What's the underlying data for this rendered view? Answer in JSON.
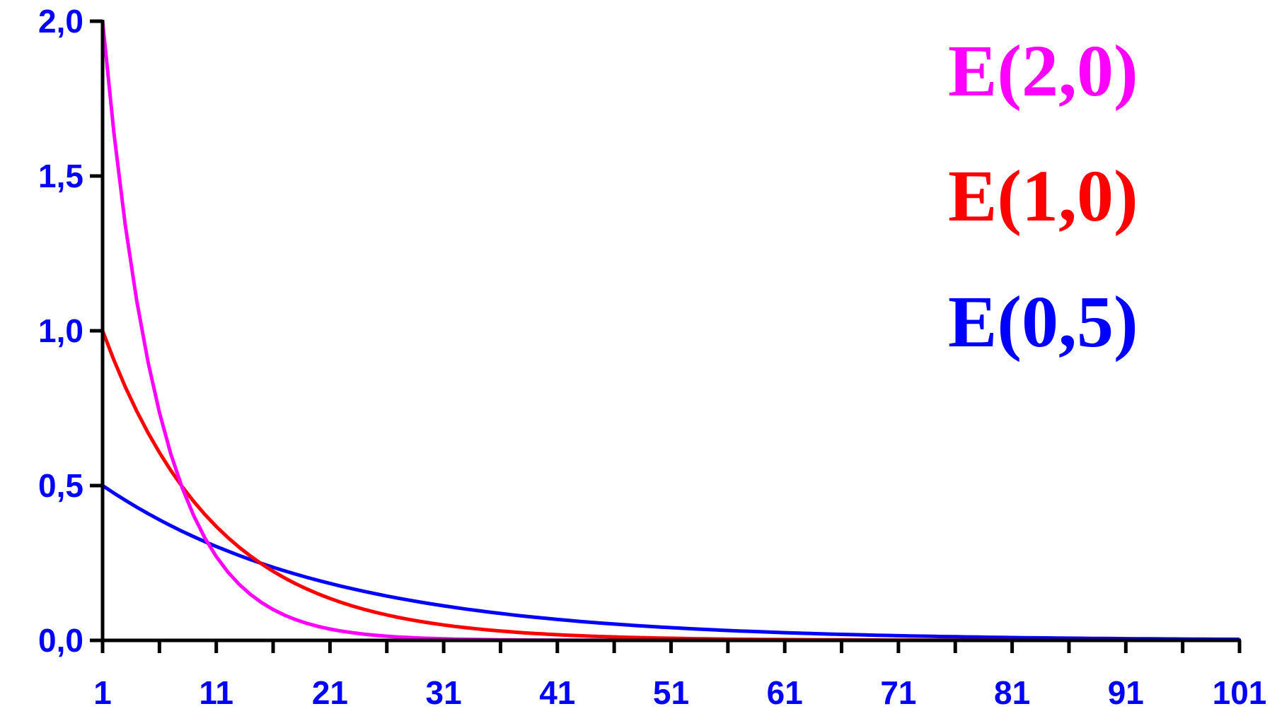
{
  "chart_data": {
    "type": "line",
    "title": "",
    "xlabel": "",
    "ylabel": "",
    "xlim": [
      1,
      101
    ],
    "ylim": [
      0,
      2
    ],
    "x_ticks": [
      "1",
      "11",
      "21",
      "31",
      "41",
      "51",
      "61",
      "71",
      "81",
      "91",
      "101"
    ],
    "y_ticks": [
      "0,0",
      "0,5",
      "1,0",
      "1,5",
      "2,0"
    ],
    "axis_label_color": "#0000ff",
    "grid": false,
    "legend_position": "top-right",
    "series": [
      {
        "name": "E(2,0)",
        "color": "#ff00ff",
        "rate": 2.0
      },
      {
        "name": "E(1,0)",
        "color": "#ff0000",
        "rate": 1.0
      },
      {
        "name": "E(0,5)",
        "color": "#0000ff",
        "rate": 0.5
      }
    ],
    "x": [
      1,
      2,
      3,
      4,
      5,
      6,
      7,
      8,
      9,
      10,
      11,
      12,
      13,
      14,
      15,
      16,
      17,
      18,
      19,
      20,
      21,
      22,
      23,
      24,
      25,
      26,
      27,
      28,
      29,
      30,
      31,
      32,
      33,
      34,
      35,
      36,
      37,
      38,
      39,
      40,
      41,
      42,
      43,
      44,
      45,
      46,
      47,
      48,
      49,
      50,
      51,
      52,
      53,
      54,
      55,
      56,
      57,
      58,
      59,
      60,
      61,
      62,
      63,
      64,
      65,
      66,
      67,
      68,
      69,
      70,
      71,
      72,
      73,
      74,
      75,
      76,
      77,
      78,
      79,
      80,
      81,
      82,
      83,
      84,
      85,
      86,
      87,
      88,
      89,
      90,
      91,
      92,
      93,
      94,
      95,
      96,
      97,
      98,
      99,
      100,
      101
    ]
  }
}
